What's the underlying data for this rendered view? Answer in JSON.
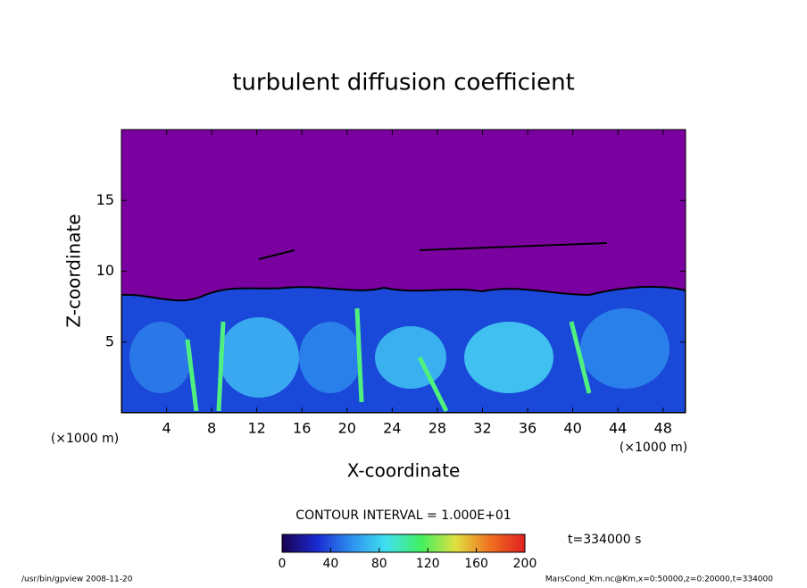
{
  "chart_data": {
    "type": "contour",
    "title": "turbulent diffusion coefficient",
    "xlabel": "X-coordinate",
    "ylabel": "Z-coordinate",
    "x_unit": "(×1000 m)",
    "y_unit": "(×1000 m)",
    "xlim": [
      0,
      50
    ],
    "xticks": [
      4,
      8,
      12,
      16,
      20,
      24,
      28,
      32,
      36,
      40,
      44,
      48
    ],
    "ylim": [
      0,
      20
    ],
    "yticks": [
      5,
      10,
      15
    ],
    "contour_interval": "CONTOUR INTERVAL = 1.000E+01",
    "time_label": "t=334000 s",
    "colorbar": {
      "lim": [
        0,
        200
      ],
      "ticks": [
        0,
        40,
        80,
        120,
        160,
        200
      ],
      "colors": [
        "#1a0050",
        "#1a2ad0",
        "#2e90f0",
        "#40e0f0",
        "#40f060",
        "#e0e040",
        "#f07020",
        "#e02020"
      ]
    },
    "footer_left": "/usr/bin/gpview  2008-11-20",
    "footer_right": "MarsCond_Km.nc@Km,x=0:50000,z=0:20000,t=334000"
  }
}
